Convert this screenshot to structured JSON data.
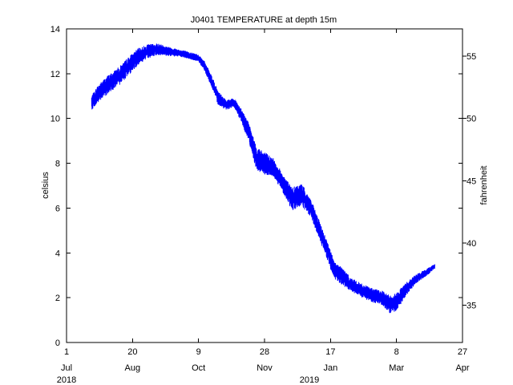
{
  "chart_data": {
    "type": "line",
    "title": "J0401 TEMPERATURE at depth 15m",
    "ylabel": "celsius",
    "y2label": "fahrenheit",
    "ylim": [
      0,
      14
    ],
    "y2lim": [
      32,
      57.2
    ],
    "yticks": [
      "0",
      "2",
      "4",
      "6",
      "8",
      "10",
      "12",
      "14"
    ],
    "y2ticks": [
      "35",
      "40",
      "45",
      "50",
      "55"
    ],
    "xlim": [
      "2018-07-01",
      "2019-04-27"
    ],
    "xticks": [
      {
        "date": "2018-07-01",
        "day": "1",
        "month": "Jul"
      },
      {
        "date": "2018-08-20",
        "day": "20",
        "month": "Aug"
      },
      {
        "date": "2018-10-09",
        "day": "9",
        "month": "Oct"
      },
      {
        "date": "2018-11-28",
        "day": "28",
        "month": "Nov"
      },
      {
        "date": "2019-01-17",
        "day": "17",
        "month": "Jan"
      },
      {
        "date": "2019-03-08",
        "day": "8",
        "month": "Mar"
      },
      {
        "date": "2019-04-27",
        "day": "27",
        "month": "Apr"
      }
    ],
    "year_labels": [
      {
        "date": "2018-07-01",
        "label": "2018"
      },
      {
        "date": "2019-01-01",
        "label": "2019"
      }
    ],
    "series": [
      {
        "color": "#0000ff",
        "points": [
          {
            "date": "2018-07-20",
            "mean": 10.7,
            "spread": 0.3
          },
          {
            "date": "2018-07-25",
            "mean": 11.1,
            "spread": 0.4
          },
          {
            "date": "2018-08-01",
            "mean": 11.5,
            "spread": 0.4
          },
          {
            "date": "2018-08-10",
            "mean": 11.9,
            "spread": 0.4
          },
          {
            "date": "2018-08-18",
            "mean": 12.4,
            "spread": 0.4
          },
          {
            "date": "2018-08-25",
            "mean": 12.8,
            "spread": 0.35
          },
          {
            "date": "2018-09-01",
            "mean": 13.0,
            "spread": 0.3
          },
          {
            "date": "2018-09-08",
            "mean": 13.1,
            "spread": 0.25
          },
          {
            "date": "2018-09-16",
            "mean": 13.0,
            "spread": 0.2
          },
          {
            "date": "2018-09-26",
            "mean": 12.9,
            "spread": 0.15
          },
          {
            "date": "2018-10-03",
            "mean": 12.8,
            "spread": 0.15
          },
          {
            "date": "2018-10-09",
            "mean": 12.7,
            "spread": 0.15
          },
          {
            "date": "2018-10-13",
            "mean": 12.4,
            "spread": 0.2
          },
          {
            "date": "2018-10-18",
            "mean": 11.8,
            "spread": 0.25
          },
          {
            "date": "2018-10-24",
            "mean": 10.9,
            "spread": 0.3
          },
          {
            "date": "2018-10-30",
            "mean": 10.6,
            "spread": 0.2
          },
          {
            "date": "2018-11-05",
            "mean": 10.7,
            "spread": 0.2
          },
          {
            "date": "2018-11-10",
            "mean": 10.2,
            "spread": 0.3
          },
          {
            "date": "2018-11-16",
            "mean": 9.4,
            "spread": 0.4
          },
          {
            "date": "2018-11-22",
            "mean": 8.2,
            "spread": 0.5
          },
          {
            "date": "2018-11-28",
            "mean": 8.0,
            "spread": 0.5
          },
          {
            "date": "2018-12-05",
            "mean": 7.8,
            "spread": 0.4
          },
          {
            "date": "2018-12-12",
            "mean": 7.1,
            "spread": 0.4
          },
          {
            "date": "2018-12-19",
            "mean": 6.4,
            "spread": 0.5
          },
          {
            "date": "2018-12-26",
            "mean": 6.6,
            "spread": 0.5
          },
          {
            "date": "2019-01-02",
            "mean": 6.0,
            "spread": 0.4
          },
          {
            "date": "2019-01-08",
            "mean": 5.1,
            "spread": 0.4
          },
          {
            "date": "2019-01-14",
            "mean": 4.2,
            "spread": 0.4
          },
          {
            "date": "2019-01-20",
            "mean": 3.2,
            "spread": 0.4
          },
          {
            "date": "2019-01-25",
            "mean": 3.0,
            "spread": 0.4
          },
          {
            "date": "2019-02-01",
            "mean": 2.6,
            "spread": 0.3
          },
          {
            "date": "2019-02-10",
            "mean": 2.3,
            "spread": 0.3
          },
          {
            "date": "2019-02-18",
            "mean": 2.1,
            "spread": 0.3
          },
          {
            "date": "2019-02-25",
            "mean": 2.0,
            "spread": 0.3
          },
          {
            "date": "2019-03-03",
            "mean": 1.7,
            "spread": 0.4
          },
          {
            "date": "2019-03-08",
            "mean": 1.8,
            "spread": 0.4
          },
          {
            "date": "2019-03-14",
            "mean": 2.3,
            "spread": 0.3
          },
          {
            "date": "2019-03-22",
            "mean": 2.8,
            "spread": 0.2
          },
          {
            "date": "2019-03-30",
            "mean": 3.1,
            "spread": 0.15
          },
          {
            "date": "2019-04-06",
            "mean": 3.4,
            "spread": 0.1
          }
        ]
      }
    ]
  }
}
